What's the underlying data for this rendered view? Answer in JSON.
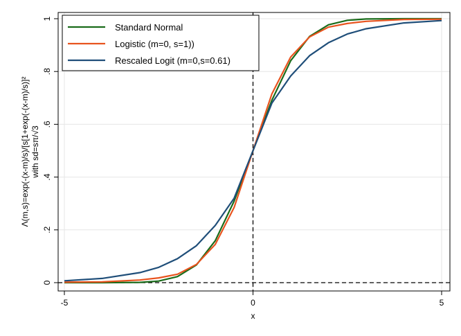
{
  "chart_data": {
    "type": "line",
    "xlabel": "x",
    "ylabel_lines": [
      "Λ(m,s)=exp(-(x-m)/s)/[s[1+exp(-(x-m)/s)]²",
      "with sd=sπ/√3"
    ],
    "xlim": [
      -5,
      5
    ],
    "ylim": [
      0,
      1
    ],
    "x_ticks": [
      -5,
      0,
      5
    ],
    "x_tick_labels": [
      "-5",
      "0",
      "5"
    ],
    "y_ticks": [
      0,
      0.2,
      0.4,
      0.6,
      0.8,
      1
    ],
    "y_tick_labels": [
      "0",
      ".2",
      ".4",
      ".6",
      ".8",
      "1"
    ],
    "grid": true,
    "legend_position": "top-left",
    "reference_lines": {
      "vertical_x": 0,
      "horizontal_y": 0,
      "style": "dashed"
    },
    "x": [
      -5,
      -4,
      -3,
      -2.5,
      -2,
      -1.5,
      -1,
      -0.5,
      0,
      0.5,
      1,
      1.5,
      2,
      2.5,
      3,
      4,
      5
    ],
    "series": [
      {
        "name": "Standard Normal",
        "color": "#1a6b1a",
        "values": [
          0.0,
          0.0,
          0.001,
          0.006,
          0.023,
          0.067,
          0.159,
          0.309,
          0.5,
          0.691,
          0.841,
          0.933,
          0.977,
          0.994,
          0.999,
          1.0,
          1.0
        ]
      },
      {
        "name": "Logistic (m=0, s=1))",
        "color": "#e8531e",
        "values": [
          0.002,
          0.003,
          0.01,
          0.018,
          0.032,
          0.069,
          0.145,
          0.285,
          0.5,
          0.715,
          0.855,
          0.931,
          0.968,
          0.982,
          0.99,
          0.997,
          0.998
        ]
      },
      {
        "name": "Rescaled Logit (m=0,s=0.61)",
        "color": "#1f4e79",
        "values": [
          0.007,
          0.016,
          0.038,
          0.058,
          0.091,
          0.14,
          0.217,
          0.32,
          0.5,
          0.68,
          0.783,
          0.86,
          0.909,
          0.942,
          0.962,
          0.984,
          0.993
        ]
      }
    ]
  }
}
